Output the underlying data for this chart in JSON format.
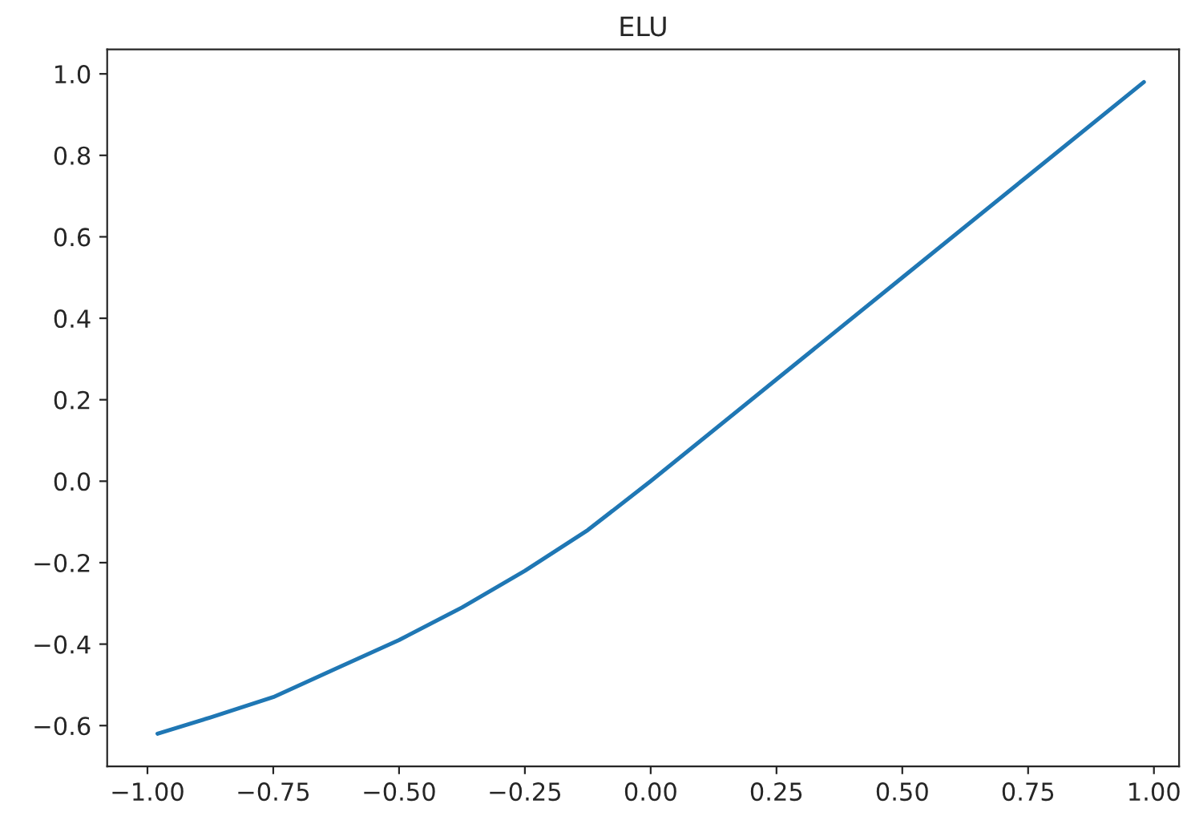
{
  "chart_data": {
    "type": "line",
    "title": "ELU",
    "x": [
      -0.98,
      -0.875,
      -0.75,
      -0.625,
      -0.5,
      -0.375,
      -0.25,
      -0.125,
      0.0,
      0.25,
      0.5,
      0.75,
      0.98
    ],
    "series": [
      {
        "color": "#1f77b4",
        "values": [
          -0.62,
          -0.58,
          -0.53,
          -0.46,
          -0.39,
          -0.31,
          -0.22,
          -0.12,
          0.0,
          0.25,
          0.5,
          0.75,
          0.98
        ]
      }
    ],
    "xlim": [
      -1.08,
      1.05
    ],
    "ylim": [
      -0.7,
      1.06
    ],
    "xticks": [
      {
        "value": -1.0,
        "label": "−1.00"
      },
      {
        "value": -0.75,
        "label": "−0.75"
      },
      {
        "value": -0.5,
        "label": "−0.50"
      },
      {
        "value": -0.25,
        "label": "−0.25"
      },
      {
        "value": 0.0,
        "label": "0.00"
      },
      {
        "value": 0.25,
        "label": "0.25"
      },
      {
        "value": 0.5,
        "label": "0.50"
      },
      {
        "value": 0.75,
        "label": "0.75"
      },
      {
        "value": 1.0,
        "label": "1.00"
      }
    ],
    "yticks": [
      {
        "value": -0.6,
        "label": "−0.6"
      },
      {
        "value": -0.4,
        "label": "−0.4"
      },
      {
        "value": -0.2,
        "label": "−0.2"
      },
      {
        "value": 0.0,
        "label": "0.0"
      },
      {
        "value": 0.2,
        "label": "0.2"
      },
      {
        "value": 0.4,
        "label": "0.4"
      },
      {
        "value": 0.6,
        "label": "0.6"
      },
      {
        "value": 0.8,
        "label": "0.8"
      },
      {
        "value": 1.0,
        "label": "1.0"
      }
    ],
    "grid": false,
    "legend": false
  }
}
